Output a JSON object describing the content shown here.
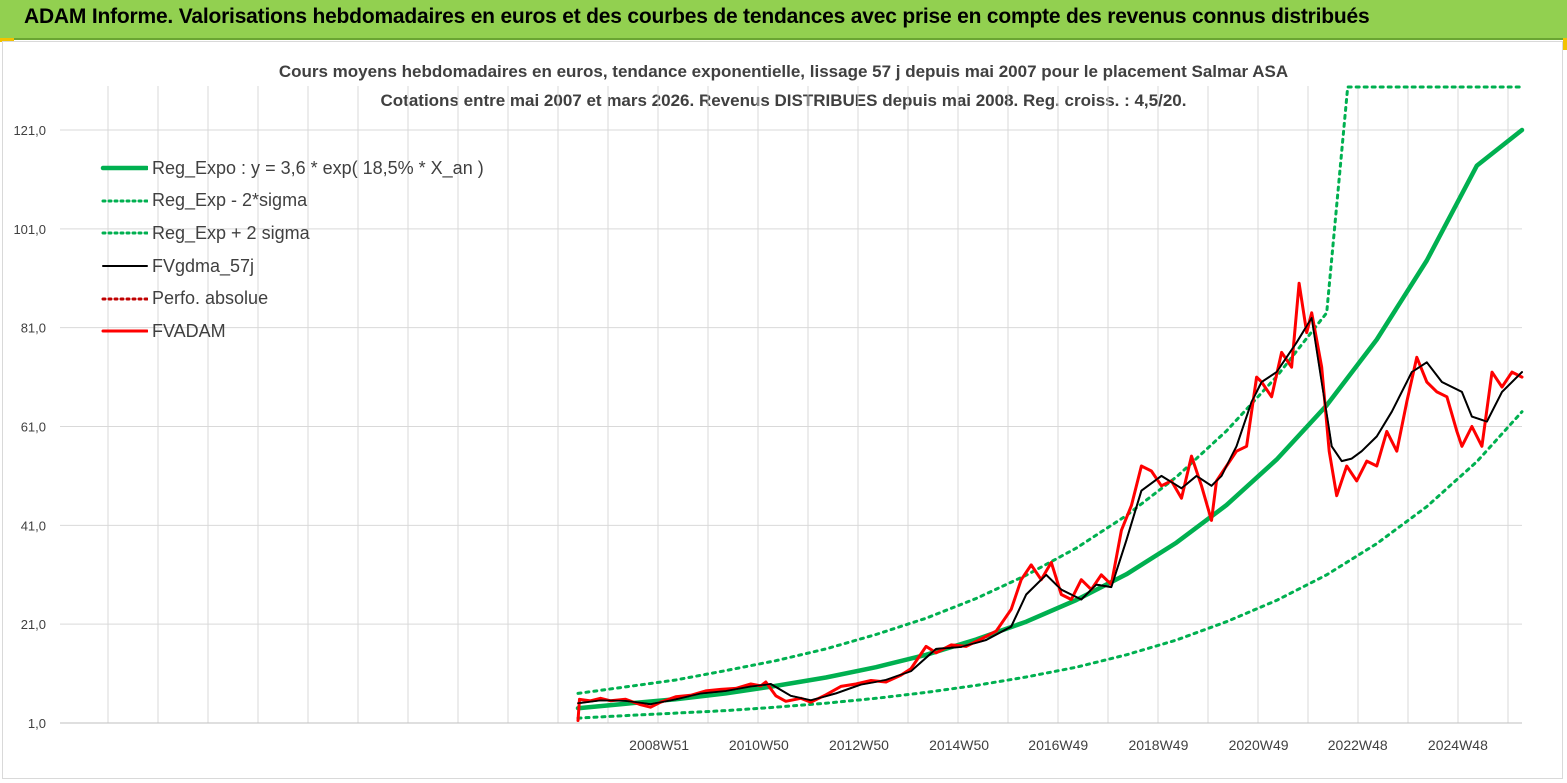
{
  "banner": {
    "text": "ADAM Informe. Valorisations hebdomadaires en euros et des courbes de tendances avec prise en compte des revenus connus distribués"
  },
  "colors": {
    "banner_bg": "#92d050",
    "reg_expo": "#00b050",
    "fvgdma": "#000000",
    "fvadam": "#ff0000",
    "perfo": "#c00000",
    "grid": "#d9d9d9"
  },
  "chart_data": {
    "type": "line",
    "title": "Cours moyens hebdomadaires en euros, tendance exponentielle, lissage 57 j depuis mai 2007 pour le placement Salmar ASA",
    "subtitle": "Cotations entre mai 2007 et mars 2026. Revenus DISTRIBUES depuis mai 2008. Reg. croiss. : 4,5/20.",
    "xlabel": "",
    "ylabel": "",
    "x_range": [
      2007.35,
      2026.2
    ],
    "ylim": [
      1,
      121
    ],
    "y_ticks": [
      "1,0",
      "21,0",
      "41,0",
      "61,0",
      "81,0",
      "101,0",
      "121,0"
    ],
    "x_ticks": [
      {
        "label": "2008W51",
        "x": 2008.97
      },
      {
        "label": "2010W50",
        "x": 2010.96
      },
      {
        "label": "2012W50",
        "x": 2012.96
      },
      {
        "label": "2014W50",
        "x": 2014.96
      },
      {
        "label": "2016W49",
        "x": 2016.94
      },
      {
        "label": "2018W49",
        "x": 2018.94
      },
      {
        "label": "2020W49",
        "x": 2020.94
      },
      {
        "label": "2022W48",
        "x": 2022.92
      },
      {
        "label": "2024W48",
        "x": 2024.92
      }
    ],
    "grid": true,
    "legend_position": "top-left",
    "series": [
      {
        "name": "Reg_Expo : y = 3,6 * exp( 18,5% *  X_an )",
        "style": "solid-thick",
        "color": "#00b050",
        "x": [
          2007.35,
          2008.3,
          2009.3,
          2010.3,
          2011.3,
          2012.3,
          2013.3,
          2014.3,
          2015.3,
          2016.3,
          2017.3,
          2018.3,
          2019.3,
          2020.3,
          2021.3,
          2022.3,
          2023.3,
          2024.3,
          2025.3,
          2026.2
        ],
        "values": [
          4.0,
          4.9,
          5.8,
          7.0,
          8.5,
          10.2,
          12.3,
          14.8,
          17.9,
          21.5,
          25.9,
          31.1,
          37.5,
          45.1,
          54.3,
          65.3,
          78.6,
          94.6,
          113.8,
          121.0
        ]
      },
      {
        "name": "Reg_Exp - 2*sigma",
        "style": "dotted",
        "color": "#00b050",
        "x": [
          2007.35,
          2008.3,
          2009.3,
          2010.3,
          2011.3,
          2012.3,
          2013.3,
          2014.3,
          2015.3,
          2016.3,
          2017.3,
          2018.3,
          2019.3,
          2020.3,
          2021.3,
          2022.3,
          2023.3,
          2024.3,
          2025.3,
          2026.2
        ],
        "values": [
          2.0,
          2.5,
          3.0,
          3.5,
          4.2,
          5.0,
          6.0,
          7.2,
          8.6,
          10.3,
          12.3,
          14.8,
          17.8,
          21.5,
          25.8,
          31.0,
          37.3,
          44.8,
          53.9,
          64.0
        ]
      },
      {
        "name": "Reg_Exp + 2 sigma",
        "style": "dotted",
        "color": "#00b050",
        "x": [
          2007.35,
          2008.3,
          2009.3,
          2010.3,
          2011.3,
          2012.3,
          2013.3,
          2014.3,
          2015.3,
          2016.3,
          2017.3,
          2018.3,
          2019.3,
          2020.3,
          2021.3,
          2022.3,
          2022.72,
          2026.2
        ],
        "values": [
          7.0,
          8.3,
          9.7,
          11.6,
          13.6,
          16.0,
          18.9,
          22.2,
          26.2,
          30.9,
          36.4,
          43.0,
          50.8,
          60.1,
          71.1,
          84.0,
          129.7,
          129.7
        ]
      },
      {
        "name": "FVgdma_57j",
        "style": "solid",
        "color": "#000000",
        "x": [
          2007.35,
          2007.8,
          2008.3,
          2008.8,
          2009.3,
          2009.8,
          2010.3,
          2010.8,
          2011.2,
          2011.6,
          2012.0,
          2012.5,
          2013.0,
          2013.5,
          2014.0,
          2014.5,
          2015.0,
          2015.5,
          2016.0,
          2016.3,
          2016.7,
          2017.0,
          2017.4,
          2017.7,
          2018.0,
          2018.3,
          2018.6,
          2019.0,
          2019.4,
          2019.7,
          2020.0,
          2020.2,
          2020.5,
          2020.8,
          2021.0,
          2021.3,
          2021.7,
          2022.0,
          2022.2,
          2022.4,
          2022.6,
          2022.8,
          2023.0,
          2023.3,
          2023.6,
          2024.0,
          2024.3,
          2024.6,
          2025.0,
          2025.2,
          2025.5,
          2025.8,
          2026.2
        ],
        "values": [
          5.0,
          5.6,
          5.5,
          4.8,
          5.8,
          7.0,
          7.5,
          8.4,
          8.9,
          6.5,
          5.6,
          7.0,
          8.8,
          9.7,
          11.5,
          16.0,
          16.4,
          17.8,
          20.5,
          27.0,
          31.0,
          28.0,
          26.0,
          29.0,
          28.5,
          38.0,
          48.0,
          51.0,
          48.5,
          51.0,
          49.0,
          51.0,
          57.0,
          66.0,
          70.0,
          72.0,
          78.0,
          83.0,
          70.0,
          57.0,
          54.0,
          54.5,
          56.0,
          59.0,
          64.0,
          72.0,
          74.0,
          70.0,
          68.0,
          63.0,
          62.0,
          68.0,
          72.0
        ]
      },
      {
        "name": "Perfo. absolue",
        "style": "dotted",
        "color": "#c00000",
        "x": [],
        "values": []
      },
      {
        "name": "FVADAM",
        "style": "solid-thick",
        "color": "#ff0000",
        "x": [
          2007.35,
          2007.38,
          2007.6,
          2007.8,
          2008.0,
          2008.3,
          2008.6,
          2008.8,
          2009.0,
          2009.3,
          2009.6,
          2009.9,
          2010.2,
          2010.5,
          2010.8,
          2011.0,
          2011.1,
          2011.3,
          2011.5,
          2011.8,
          2012.0,
          2012.3,
          2012.6,
          2012.9,
          2013.2,
          2013.5,
          2013.8,
          2014.0,
          2014.3,
          2014.5,
          2014.8,
          2015.1,
          2015.4,
          2015.7,
          2016.0,
          2016.2,
          2016.4,
          2016.6,
          2016.8,
          2017.0,
          2017.2,
          2017.4,
          2017.6,
          2017.8,
          2018.0,
          2018.2,
          2018.4,
          2018.6,
          2018.8,
          2019.0,
          2019.2,
          2019.4,
          2019.6,
          2019.8,
          2020.0,
          2020.1,
          2020.3,
          2020.5,
          2020.7,
          2020.9,
          2021.0,
          2021.2,
          2021.4,
          2021.6,
          2021.75,
          2021.9,
          2022.0,
          2022.2,
          2022.35,
          2022.5,
          2022.7,
          2022.9,
          2023.1,
          2023.3,
          2023.5,
          2023.7,
          2023.9,
          2024.1,
          2024.3,
          2024.5,
          2024.7,
          2024.9,
          2025.0,
          2025.2,
          2025.4,
          2025.6,
          2025.8,
          2026.0,
          2026.2
        ],
        "values": [
          1.5,
          5.8,
          5.5,
          6.0,
          5.5,
          5.8,
          4.7,
          4.2,
          5.2,
          6.3,
          6.6,
          7.5,
          7.8,
          8.0,
          8.9,
          8.5,
          9.3,
          6.5,
          5.4,
          6.0,
          5.2,
          6.7,
          8.4,
          8.9,
          9.6,
          9.3,
          10.7,
          12.0,
          16.5,
          15.2,
          16.8,
          16.5,
          18.0,
          19.6,
          24.0,
          30.0,
          33.0,
          30.0,
          33.5,
          27.0,
          26.0,
          30.0,
          28.0,
          31.0,
          29.0,
          40.0,
          45.0,
          53.0,
          52.0,
          49.0,
          50.0,
          46.5,
          55.0,
          49.0,
          42.0,
          50.0,
          53.0,
          56.0,
          57.0,
          71.0,
          70.0,
          67.0,
          76.0,
          73.0,
          90.0,
          80.0,
          84.0,
          73.0,
          56.0,
          47.0,
          53.0,
          50.0,
          54.0,
          53.0,
          60.0,
          56.0,
          66.0,
          75.0,
          70.0,
          68.0,
          67.0,
          60.0,
          57.0,
          61.0,
          57.0,
          72.0,
          69.0,
          72.0,
          71.0
        ]
      }
    ]
  }
}
